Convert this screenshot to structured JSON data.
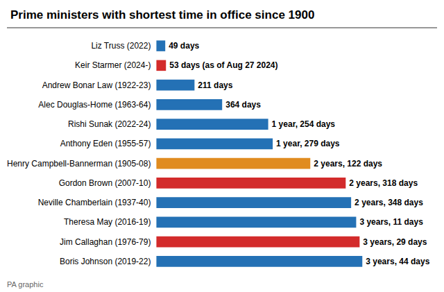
{
  "chart_data": {
    "type": "bar",
    "orientation": "horizontal",
    "title": "Prime ministers with shortest time in office since 1900",
    "annotations": [
      "PA graphic"
    ],
    "categories": [
      "Liz Truss (2022)",
      "Keir Starmer (2024-)",
      "Andrew Bonar Law (1922-23)",
      "Alec Douglas-Home (1963-64)",
      "Rishi Sunak (2022-24)",
      "Anthony Eden (1955-57)",
      "Henry Campbell-Bannerman (1905-08)",
      "Gordon Brown (2007-10)",
      "Neville Chamberlain (1937-40)",
      "Theresa May (2016-19)",
      "Jim Callaghan (1976-79)",
      "Boris Johnson (2019-22)"
    ],
    "values": [
      49,
      53,
      211,
      364,
      619,
      644,
      852,
      1048,
      1078,
      1106,
      1125,
      1140
    ],
    "value_labels": [
      "49 days",
      "53 days (as of Aug 27 2024)",
      "211 days",
      "364 days",
      "1 year, 254 days",
      "1 year, 279 days",
      "2 years, 122 days",
      "2 years, 318 days",
      "2 years, 348 days",
      "3 years, 11 days",
      "3 years, 29 days",
      "3 years, 44 days"
    ],
    "colors": [
      "#2471b5",
      "#d32b2b",
      "#2471b5",
      "#2471b5",
      "#2471b5",
      "#2471b5",
      "#e08c20",
      "#d32b2b",
      "#2471b5",
      "#2471b5",
      "#d32b2b",
      "#2471b5"
    ],
    "xlim": [
      0,
      1500
    ],
    "data_labels": true,
    "tick_labels": "y",
    "grid": false
  }
}
